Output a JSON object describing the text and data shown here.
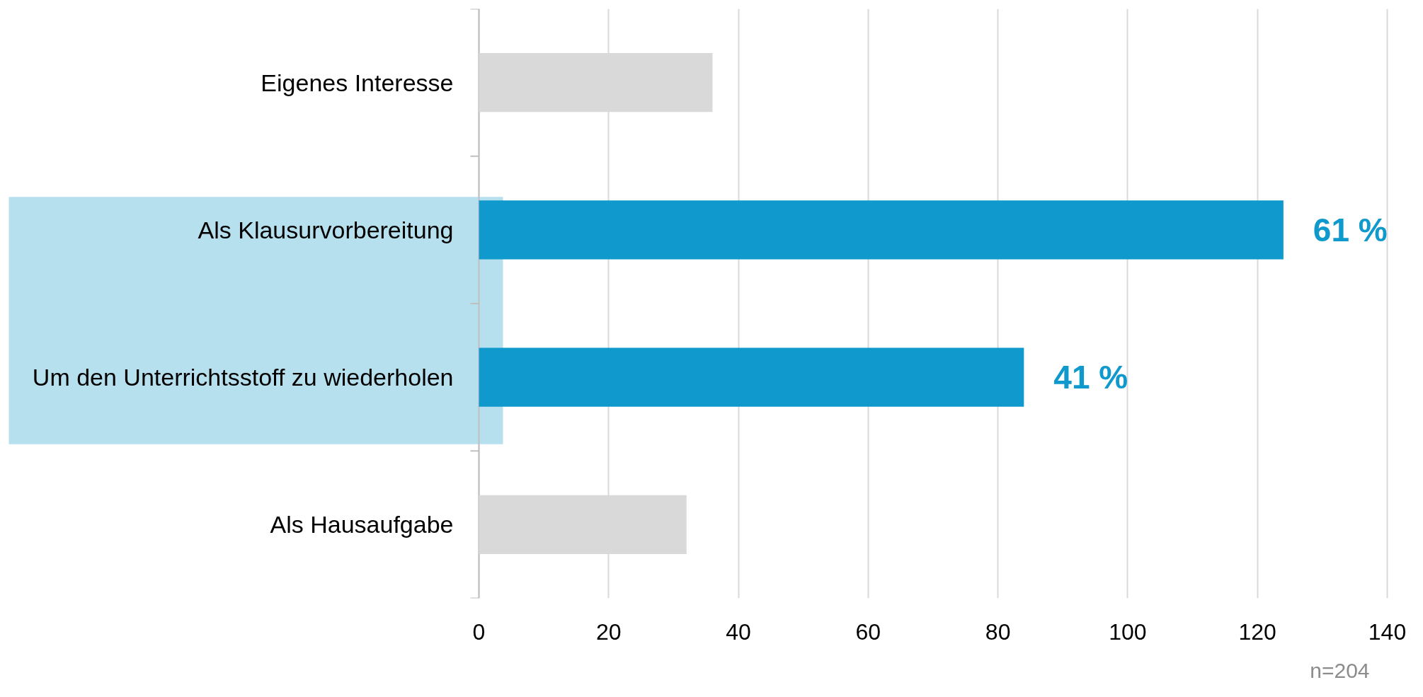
{
  "chart_data": {
    "type": "bar",
    "orientation": "horizontal",
    "categories": [
      "Eigenes Interesse",
      "Als Klausurvorbereitung",
      "Um den Unterrichtsstoff zu wiederholen",
      "Als Hausaufgabe"
    ],
    "values": [
      36,
      124,
      84,
      32
    ],
    "colors": [
      "#d9d9d9",
      "#0f99cc",
      "#0f99cc",
      "#d9d9d9"
    ],
    "xlim": [
      0,
      140
    ],
    "xticks": [
      0,
      20,
      40,
      60,
      80,
      100,
      120,
      140
    ],
    "grid": "x",
    "annotations": [
      {
        "text": "61 %",
        "x": 124,
        "y": "Als Klausurvorbereitung"
      },
      {
        "text": "41 %",
        "x": 84,
        "y": "Um den Unterrichtsstoff zu wiederholen"
      },
      "n=204"
    ]
  }
}
